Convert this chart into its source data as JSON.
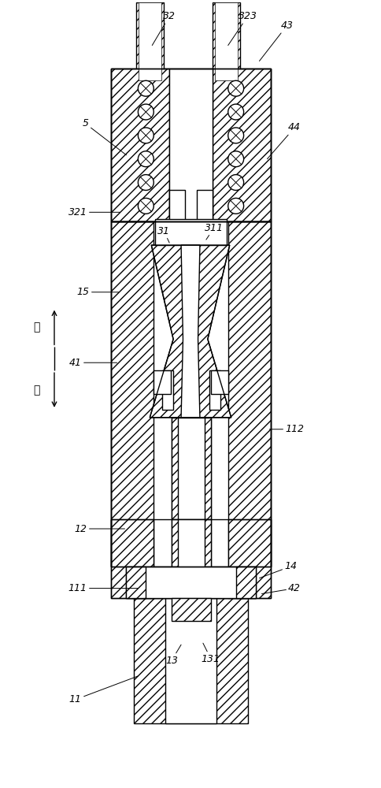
{
  "bg_color": "#ffffff",
  "lw": 1.0,
  "figsize": [
    4.84,
    10.0
  ],
  "dpi": 100
}
